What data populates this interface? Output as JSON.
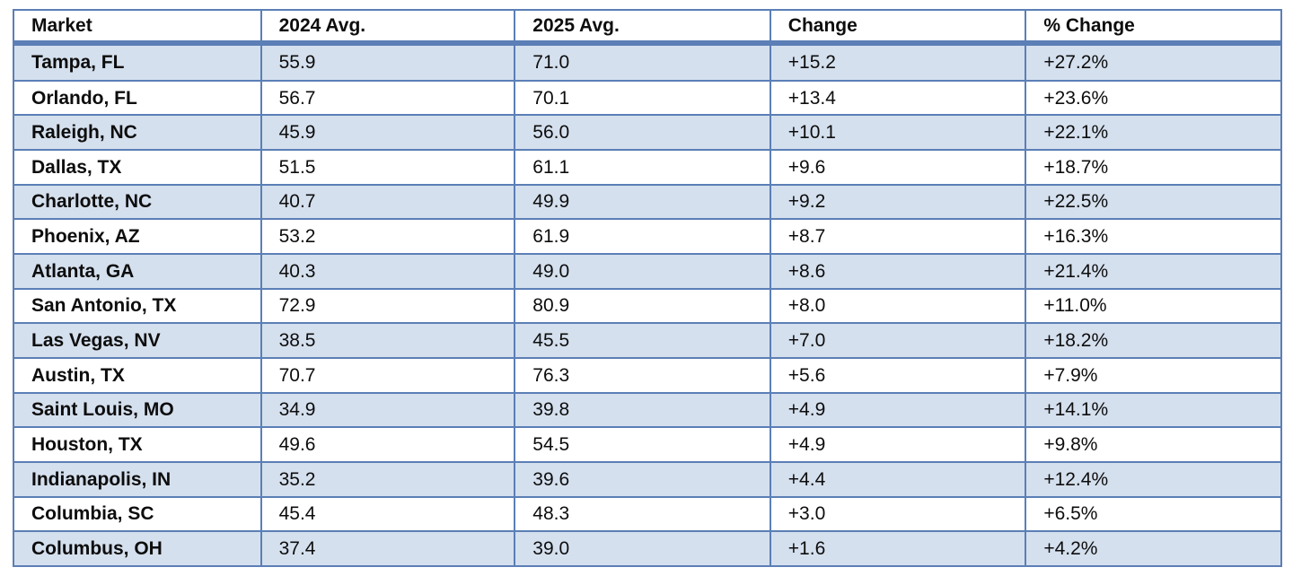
{
  "colors": {
    "border_blue": "#5b7fb6",
    "alt_row_bg": "#d5e0ee",
    "header_bg": "#ffffff",
    "text": "#0d0d0d"
  },
  "chart_data": {
    "type": "table",
    "title": "",
    "columns": [
      "Market",
      "2024 Avg.",
      "2025 Avg.",
      "Change",
      "% Change"
    ],
    "rows": [
      [
        "Tampa, FL",
        "55.9",
        "71.0",
        "+15.2",
        "+27.2%"
      ],
      [
        "Orlando, FL",
        "56.7",
        "70.1",
        "+13.4",
        "+23.6%"
      ],
      [
        "Raleigh, NC",
        "45.9",
        "56.0",
        "+10.1",
        "+22.1%"
      ],
      [
        "Dallas, TX",
        "51.5",
        "61.1",
        "+9.6",
        "+18.7%"
      ],
      [
        "Charlotte, NC",
        "40.7",
        "49.9",
        "+9.2",
        "+22.5%"
      ],
      [
        "Phoenix, AZ",
        "53.2",
        "61.9",
        "+8.7",
        "+16.3%"
      ],
      [
        "Atlanta, GA",
        "40.3",
        "49.0",
        "+8.6",
        "+21.4%"
      ],
      [
        "San Antonio, TX",
        "72.9",
        "80.9",
        "+8.0",
        "+11.0%"
      ],
      [
        "Las Vegas, NV",
        "38.5",
        "45.5",
        "+7.0",
        "+18.2%"
      ],
      [
        "Austin, TX",
        "70.7",
        "76.3",
        "+5.6",
        "+7.9%"
      ],
      [
        "Saint Louis, MO",
        "34.9",
        "39.8",
        "+4.9",
        "+14.1%"
      ],
      [
        "Houston, TX",
        "49.6",
        "54.5",
        "+4.9",
        "+9.8%"
      ],
      [
        "Indianapolis, IN",
        "35.2",
        "39.6",
        "+4.4",
        "+12.4%"
      ],
      [
        "Columbia, SC",
        "45.4",
        "48.3",
        "+3.0",
        "+6.5%"
      ],
      [
        "Columbus, OH",
        "37.4",
        "39.0",
        "+1.6",
        "+4.2%"
      ]
    ]
  }
}
